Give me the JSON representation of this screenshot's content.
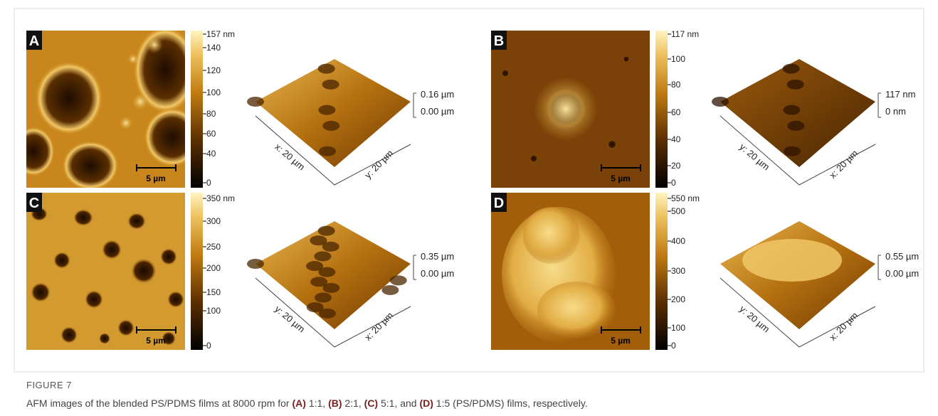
{
  "figure": {
    "panels": [
      {
        "label": "A",
        "colorbar_ticks": [
          "157 nm",
          "140",
          "120",
          "100",
          "80",
          "60",
          "40",
          "0"
        ],
        "scale_bar": "5 µm",
        "z_labels": [
          "0.16 µm",
          "0.00 µm"
        ],
        "left_axis": "x: 20 µm",
        "right_axis": "y: 20 µm"
      },
      {
        "label": "B",
        "colorbar_ticks": [
          "117 nm",
          "100",
          "80",
          "60",
          "40",
          "20",
          "0"
        ],
        "scale_bar": "5 µm",
        "z_labels": [
          "117 nm",
          "0 nm"
        ],
        "left_axis": "y: 20 µm",
        "right_axis": "x: 20 µm"
      },
      {
        "label": "C",
        "colorbar_ticks": [
          "350 nm",
          "300",
          "250",
          "200",
          "150",
          "100",
          "0"
        ],
        "scale_bar": "5 µm",
        "z_labels": [
          "0.35 µm",
          "0.00 µm"
        ],
        "left_axis": "y: 20 µm",
        "right_axis": "x: 20 µm"
      },
      {
        "label": "D",
        "colorbar_ticks": [
          "550 nm",
          "500",
          "400",
          "300",
          "200",
          "100",
          "0"
        ],
        "scale_bar": "5 µm",
        "z_labels": [
          "0.55 µm",
          "0.00 µm"
        ],
        "left_axis": "y: 20 µm",
        "right_axis": "x: 20 µm"
      }
    ],
    "caption": {
      "number": "FIGURE 7",
      "segments": [
        {
          "text": "AFM images of the blended PS/PDMS films at 8000 rpm for ",
          "bold": false
        },
        {
          "text": "(A)",
          "bold": true
        },
        {
          "text": " 1:1, ",
          "bold": false
        },
        {
          "text": "(B)",
          "bold": true
        },
        {
          "text": " 2:1, ",
          "bold": false
        },
        {
          "text": "(C)",
          "bold": true
        },
        {
          "text": " 5:1, and ",
          "bold": false
        },
        {
          "text": "(D)",
          "bold": true
        },
        {
          "text": " 1:5 (PS/PDMS) films, respectively.",
          "bold": false
        }
      ]
    }
  }
}
